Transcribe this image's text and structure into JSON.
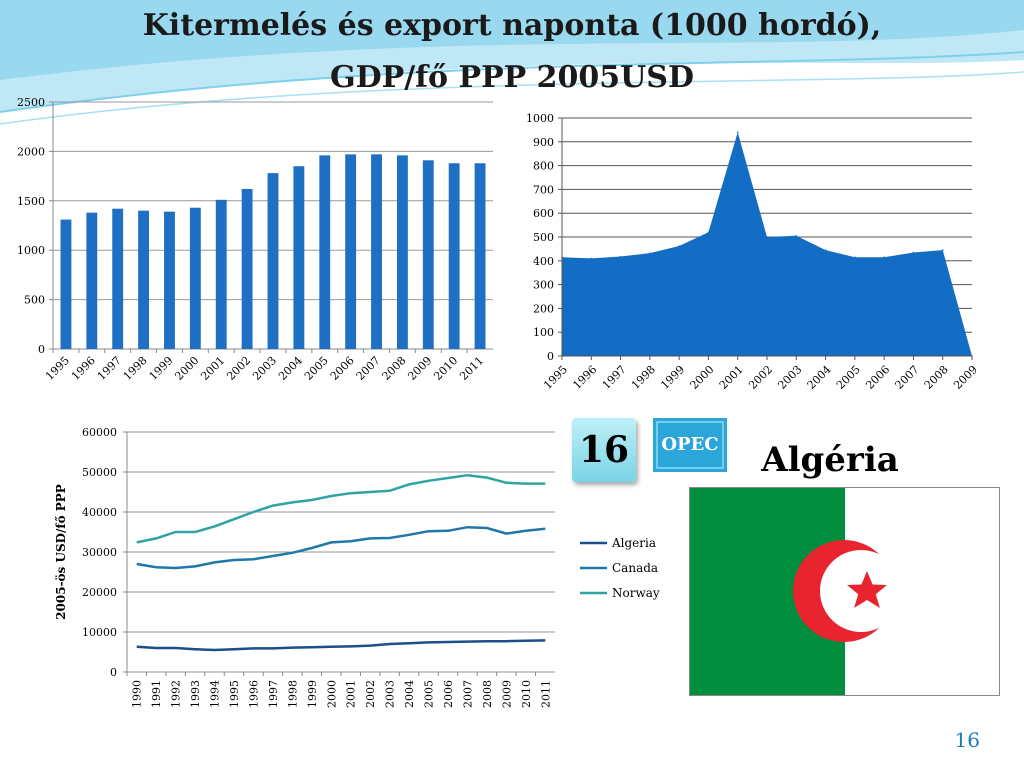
{
  "slide": {
    "title_line1": "Kitermelés és export naponta (1000 hordó),",
    "title_line2": "GDP/fő PPP 2005USD",
    "badge_number": "16",
    "opec_label": "OPEC",
    "country": "Algéria",
    "page_number": "16"
  },
  "colors": {
    "bar_blue": "#1f6fc5",
    "area_blue": "#136dc4",
    "flag_green": "#008d3e",
    "flag_red": "#e8242f",
    "opec_bg": "#2aa6d8",
    "swoosh": "#7fd0ec"
  },
  "chart_data": [
    {
      "type": "bar",
      "categories": [
        "1995",
        "1996",
        "1997",
        "1998",
        "1999",
        "2000",
        "2001",
        "2002",
        "2003",
        "2004",
        "2005",
        "2006",
        "2007",
        "2008",
        "2009",
        "2010",
        "2011"
      ],
      "values": [
        1310,
        1380,
        1420,
        1400,
        1390,
        1430,
        1510,
        1620,
        1780,
        1850,
        1960,
        1970,
        1970,
        1960,
        1910,
        1880,
        1880
      ],
      "ylim": [
        0,
        2500
      ],
      "yticks": [
        "0",
        "500",
        "1000",
        "1500",
        "2000",
        "2500"
      ],
      "grid": true
    },
    {
      "type": "area",
      "categories": [
        "1995",
        "1996",
        "1997",
        "1998",
        "1999",
        "2000",
        "2001",
        "2002",
        "2003",
        "2004",
        "2005",
        "2006",
        "2007",
        "2008",
        "2009"
      ],
      "values": [
        415,
        410,
        418,
        432,
        462,
        520,
        940,
        500,
        505,
        445,
        415,
        415,
        435,
        445,
        0
      ],
      "ylim": [
        0,
        1000
      ],
      "yticks": [
        "0",
        "100",
        "200",
        "300",
        "400",
        "500",
        "600",
        "700",
        "800",
        "900",
        "1000"
      ],
      "grid": true
    },
    {
      "type": "line",
      "x": [
        "1990",
        "1991",
        "1992",
        "1993",
        "1994",
        "1995",
        "1996",
        "1997",
        "1998",
        "1999",
        "2000",
        "2001",
        "2002",
        "2003",
        "2004",
        "2005",
        "2006",
        "2007",
        "2008",
        "2009",
        "2010",
        "2011"
      ],
      "ylabel": "2005-ös USD/fő PPP",
      "ylim": [
        0,
        60000
      ],
      "yticks": [
        "0",
        "10000",
        "20000",
        "30000",
        "40000",
        "50000",
        "60000"
      ],
      "legend": "right",
      "series": [
        {
          "name": "Algeria",
          "color": "#1b4f8a",
          "values": [
            6300,
            6000,
            6000,
            5700,
            5500,
            5700,
            5900,
            5900,
            6100,
            6200,
            6300,
            6400,
            6600,
            7000,
            7200,
            7400,
            7500,
            7600,
            7700,
            7700,
            7800,
            7900
          ]
        },
        {
          "name": "Canada",
          "color": "#1f78a8",
          "values": [
            27000,
            26200,
            26000,
            26400,
            27400,
            28000,
            28200,
            29000,
            29800,
            31000,
            32400,
            32700,
            33400,
            33500,
            34300,
            35200,
            35300,
            36200,
            36000,
            34600,
            35300,
            35800
          ]
        },
        {
          "name": "Norway",
          "color": "#2ea3a3",
          "values": [
            32400,
            33400,
            35000,
            35000,
            36400,
            38200,
            40000,
            41600,
            42400,
            43000,
            44000,
            44700,
            45000,
            45300,
            46900,
            47800,
            48500,
            49200,
            48600,
            47300,
            47100,
            47100
          ]
        }
      ]
    }
  ]
}
